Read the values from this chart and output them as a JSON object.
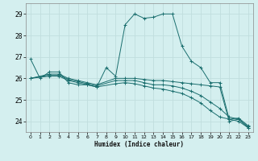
{
  "title": "",
  "xlabel": "Humidex (Indice chaleur)",
  "ylabel": "",
  "background_color": "#d4efef",
  "grid_color": "#c0dede",
  "line_color": "#1a6e6e",
  "xlim": [
    -0.5,
    23.5
  ],
  "ylim": [
    23.5,
    29.5
  ],
  "yticks": [
    24,
    25,
    26,
    27,
    28,
    29
  ],
  "xtick_labels": [
    "0",
    "1",
    "2",
    "3",
    "4",
    "5",
    "6",
    "7",
    "8",
    "9",
    "10",
    "11",
    "12",
    "13",
    "14",
    "15",
    "16",
    "17",
    "18",
    "19",
    "20",
    "21",
    "22",
    "23"
  ],
  "series": [
    {
      "x": [
        0,
        1,
        2,
        3,
        4,
        5,
        6,
        7,
        8,
        9,
        10,
        11,
        12,
        13,
        14,
        15,
        16,
        17,
        18,
        19,
        20,
        21,
        22,
        23
      ],
      "y": [
        26.9,
        26.0,
        26.3,
        26.3,
        25.8,
        25.7,
        25.7,
        25.6,
        26.5,
        26.1,
        28.5,
        29.0,
        28.8,
        28.85,
        29.0,
        29.0,
        27.5,
        26.8,
        26.5,
        25.8,
        25.8,
        24.1,
        24.15,
        23.8
      ]
    },
    {
      "x": [
        0,
        2,
        3,
        4,
        5,
        6,
        7,
        9,
        10,
        11,
        12,
        13,
        14,
        15,
        16,
        17,
        18,
        19,
        20,
        21,
        22,
        23
      ],
      "y": [
        26.0,
        26.2,
        26.2,
        26.0,
        25.9,
        25.8,
        25.7,
        26.0,
        26.0,
        26.0,
        25.95,
        25.9,
        25.9,
        25.85,
        25.8,
        25.75,
        25.7,
        25.65,
        25.6,
        24.0,
        24.1,
        23.7
      ]
    },
    {
      "x": [
        0,
        2,
        3,
        4,
        5,
        6,
        7,
        9,
        10,
        11,
        12,
        13,
        14,
        15,
        16,
        17,
        18,
        19,
        20,
        21,
        22,
        23
      ],
      "y": [
        26.0,
        26.15,
        26.15,
        25.95,
        25.85,
        25.75,
        25.65,
        25.9,
        25.9,
        25.9,
        25.8,
        25.7,
        25.7,
        25.65,
        25.55,
        25.4,
        25.2,
        24.9,
        24.6,
        24.2,
        24.1,
        23.75
      ]
    },
    {
      "x": [
        0,
        2,
        3,
        4,
        5,
        6,
        7,
        9,
        10,
        11,
        12,
        13,
        14,
        15,
        16,
        17,
        18,
        19,
        20,
        21,
        22,
        23
      ],
      "y": [
        26.0,
        26.1,
        26.1,
        25.9,
        25.8,
        25.7,
        25.6,
        25.75,
        25.8,
        25.75,
        25.65,
        25.55,
        25.5,
        25.4,
        25.3,
        25.1,
        24.85,
        24.5,
        24.2,
        24.1,
        24.0,
        23.7
      ]
    }
  ]
}
